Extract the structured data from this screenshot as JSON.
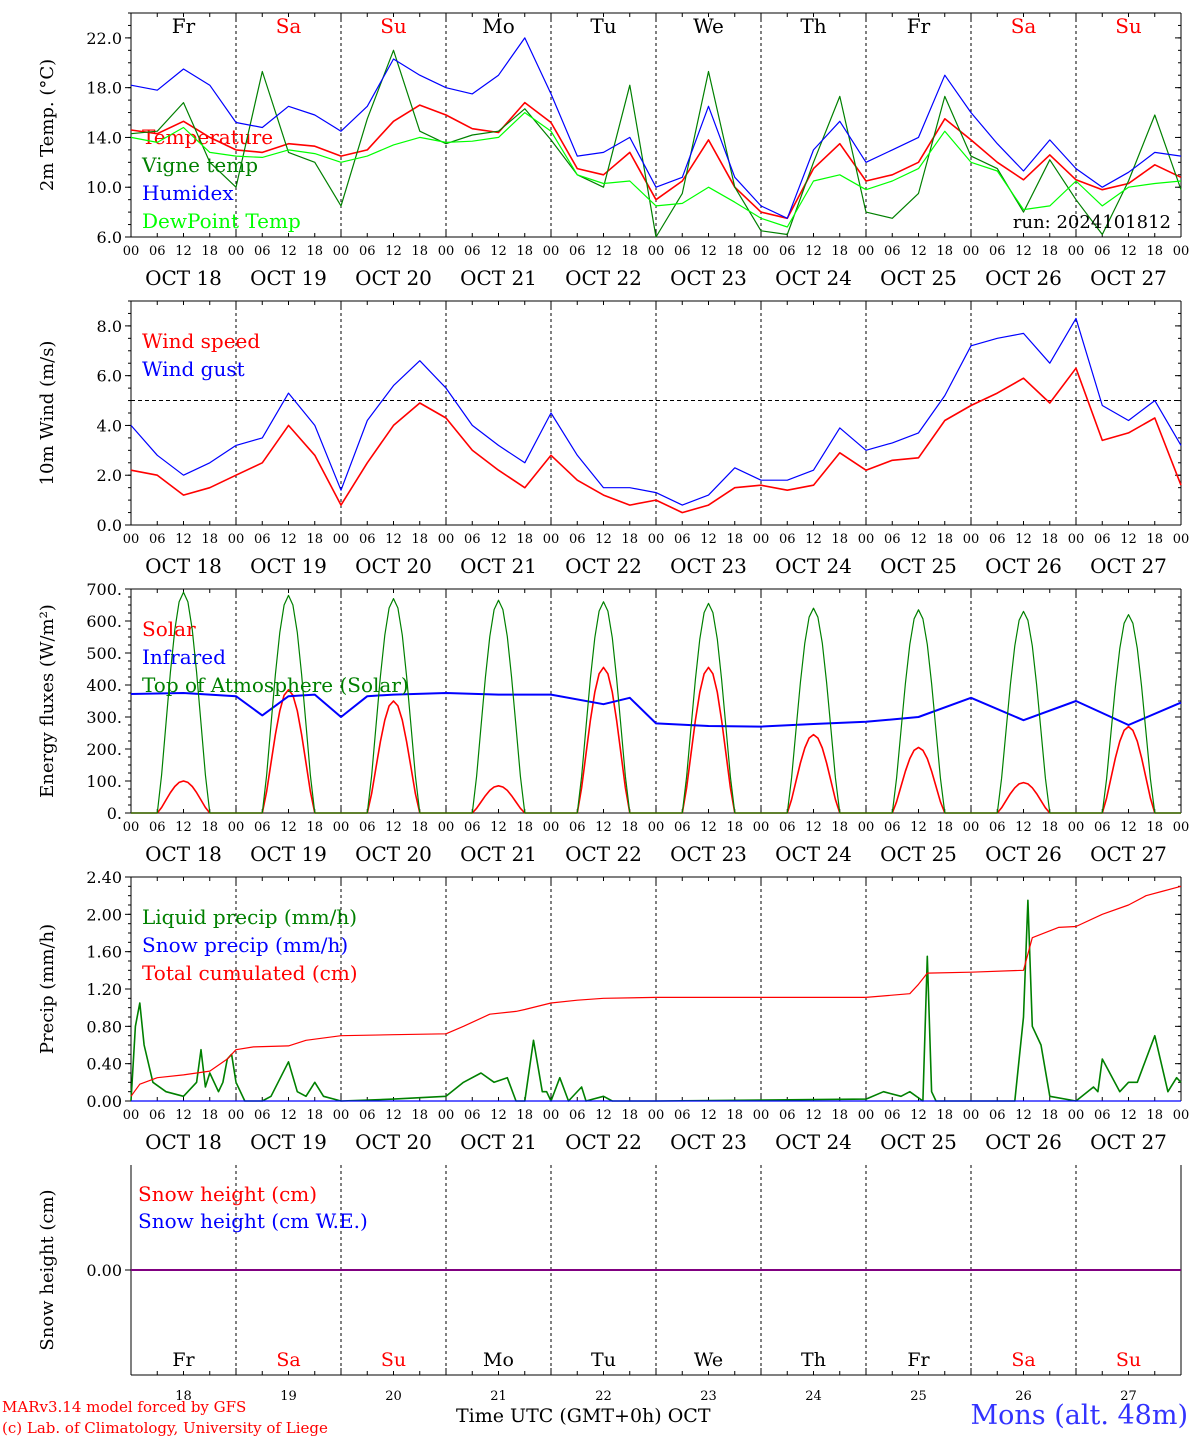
{
  "days": [
    {
      "abbr": "Fr",
      "color": "#000000",
      "date": "OCT 18",
      "num": "18"
    },
    {
      "abbr": "Sa",
      "color": "#ff0000",
      "date": "OCT 19",
      "num": "19"
    },
    {
      "abbr": "Su",
      "color": "#ff0000",
      "date": "OCT 20",
      "num": "20"
    },
    {
      "abbr": "Mo",
      "color": "#000000",
      "date": "OCT 21",
      "num": "21"
    },
    {
      "abbr": "Tu",
      "color": "#000000",
      "date": "OCT 22",
      "num": "22"
    },
    {
      "abbr": "We",
      "color": "#000000",
      "date": "OCT 23",
      "num": "23"
    },
    {
      "abbr": "Th",
      "color": "#000000",
      "date": "OCT 24",
      "num": "24"
    },
    {
      "abbr": "Fr",
      "color": "#000000",
      "date": "OCT 25",
      "num": "25"
    },
    {
      "abbr": "Sa",
      "color": "#ff0000",
      "date": "OCT 26",
      "num": "26"
    },
    {
      "abbr": "Su",
      "color": "#ff0000",
      "date": "OCT 27",
      "num": "27"
    }
  ],
  "hour_ticks": [
    "00",
    "06",
    "12",
    "18"
  ],
  "chart_data": [
    {
      "type": "line",
      "id": "temp",
      "ylabel": "2m Temp. (°C)",
      "ylim": [
        6,
        24
      ],
      "yticks": [
        6,
        10,
        14,
        18,
        22
      ],
      "ytick_labels": [
        "6.0",
        "10.0",
        "14.0",
        "18.0",
        "22.0"
      ],
      "annotation": "run: 2024101812",
      "x_hours": [
        0,
        6,
        12,
        18,
        24,
        30,
        36,
        42,
        48,
        54,
        60,
        66,
        72,
        78,
        84,
        90,
        96,
        102,
        108,
        114,
        120,
        126,
        132,
        138,
        144,
        150,
        156,
        162,
        168,
        174,
        180,
        186,
        192,
        198,
        204,
        210,
        216,
        222,
        228,
        234,
        240
      ],
      "series": [
        {
          "name": "Temperature",
          "color": "#ff0000",
          "values": [
            14.6,
            14.3,
            15.3,
            14.0,
            13.0,
            12.8,
            13.5,
            13.3,
            12.5,
            13.0,
            15.3,
            16.6,
            15.8,
            14.7,
            14.4,
            16.8,
            15.2,
            11.5,
            11.0,
            12.8,
            9.0,
            10.5,
            13.8,
            10.0,
            8.0,
            7.5,
            11.5,
            13.5,
            10.5,
            11.0,
            12.0,
            15.5,
            13.8,
            12.0,
            10.6,
            12.6,
            10.6,
            9.8,
            10.3,
            11.8,
            10.8
          ]
        },
        {
          "name": "Vigne temp",
          "color": "#008000",
          "values": [
            14.3,
            14.5,
            16.8,
            12.0,
            10.0,
            19.3,
            12.8,
            12.0,
            8.5,
            15.5,
            21.0,
            14.5,
            13.5,
            14.2,
            14.5,
            16.3,
            13.8,
            11.0,
            10.0,
            18.2,
            6.0,
            9.5,
            19.3,
            10.0,
            6.5,
            6.2,
            12.0,
            17.3,
            8.0,
            7.5,
            9.5,
            17.3,
            12.5,
            11.5,
            8.0,
            12.2,
            9.0,
            6.2,
            10.5,
            15.8,
            9.8
          ]
        },
        {
          "name": "Humidex",
          "color": "#0000ff",
          "values": [
            18.2,
            17.8,
            19.5,
            18.2,
            15.2,
            14.8,
            16.5,
            15.8,
            14.5,
            16.5,
            20.3,
            19.0,
            18.0,
            17.5,
            19.0,
            22.0,
            17.5,
            12.5,
            12.8,
            14.0,
            10.0,
            10.8,
            16.5,
            10.8,
            8.5,
            7.5,
            13.0,
            15.3,
            12.0,
            13.0,
            14.0,
            19.0,
            16.0,
            13.5,
            11.3,
            13.8,
            11.5,
            10.0,
            11.2,
            12.8,
            12.5
          ]
        },
        {
          "name": "DewPoint Temp",
          "color": "#00ff00",
          "values": [
            14.0,
            13.6,
            14.8,
            12.8,
            12.5,
            12.4,
            13.0,
            12.7,
            12.0,
            12.5,
            13.4,
            14.0,
            13.6,
            13.7,
            14.0,
            16.0,
            14.5,
            11.0,
            10.3,
            10.5,
            8.5,
            8.7,
            10.0,
            8.8,
            7.5,
            6.8,
            10.5,
            11.0,
            9.8,
            10.5,
            11.5,
            14.5,
            12.0,
            11.3,
            8.2,
            8.5,
            10.5,
            8.5,
            10.0,
            10.3,
            10.5
          ]
        }
      ]
    },
    {
      "type": "line",
      "id": "wind",
      "ylabel": "10m Wind (m/s)",
      "ylim": [
        0,
        9
      ],
      "yticks": [
        0,
        2,
        4,
        6,
        8
      ],
      "ytick_labels": [
        "0.0",
        "2.0",
        "4.0",
        "6.0",
        "8.0"
      ],
      "reference_line": 5,
      "x_hours": [
        0,
        6,
        12,
        18,
        24,
        30,
        36,
        42,
        48,
        54,
        60,
        66,
        72,
        78,
        84,
        90,
        96,
        102,
        108,
        114,
        120,
        126,
        132,
        138,
        144,
        150,
        156,
        162,
        168,
        174,
        180,
        186,
        192,
        198,
        204,
        210,
        216,
        222,
        228,
        234,
        240
      ],
      "series": [
        {
          "name": "Wind speed",
          "color": "#ff0000",
          "values": [
            2.2,
            2.0,
            1.2,
            1.5,
            2.0,
            2.5,
            4.0,
            2.8,
            0.8,
            2.5,
            4.0,
            4.9,
            4.3,
            3.0,
            2.2,
            1.5,
            2.8,
            1.8,
            1.2,
            0.8,
            1.0,
            0.5,
            0.8,
            1.5,
            1.6,
            1.4,
            1.6,
            2.9,
            2.2,
            2.6,
            2.7,
            4.2,
            4.8,
            5.3,
            5.9,
            4.9,
            6.3,
            3.4,
            3.7,
            4.3,
            1.6
          ]
        },
        {
          "name": "Wind gust",
          "color": "#0000ff",
          "values": [
            4.0,
            2.8,
            2.0,
            2.5,
            3.2,
            3.5,
            5.3,
            4.0,
            1.4,
            4.2,
            5.6,
            6.6,
            5.5,
            4.0,
            3.2,
            2.5,
            4.5,
            2.8,
            1.5,
            1.5,
            1.3,
            0.8,
            1.2,
            2.3,
            1.8,
            1.8,
            2.2,
            3.9,
            3.0,
            3.3,
            3.7,
            5.2,
            7.2,
            7.5,
            7.7,
            6.5,
            8.3,
            4.8,
            4.2,
            5.0,
            3.2
          ]
        }
      ]
    },
    {
      "type": "line",
      "id": "energy",
      "ylabel": "Energy fluxes (W/m²)",
      "ylim": [
        0,
        700
      ],
      "yticks": [
        0,
        100,
        200,
        300,
        400,
        500,
        600,
        700
      ],
      "ytick_labels": [
        "0.",
        "100.",
        "200.",
        "300.",
        "400.",
        "500.",
        "600.",
        "700."
      ],
      "series": [
        {
          "name": "Solar",
          "color": "#ff0000",
          "peaks": [
            100,
            385,
            350,
            85,
            455,
            455,
            245,
            205,
            95,
            270
          ]
        },
        {
          "name": "Infrared",
          "color": "#0000ff",
          "x_hours": [
            0,
            12,
            24,
            30,
            36,
            42,
            48,
            54,
            60,
            72,
            84,
            96,
            108,
            114,
            120,
            132,
            144,
            156,
            168,
            180,
            192,
            204,
            216,
            228,
            240
          ],
          "values": [
            372,
            375,
            365,
            305,
            365,
            370,
            300,
            365,
            370,
            375,
            370,
            370,
            340,
            360,
            280,
            272,
            270,
            278,
            285,
            300,
            360,
            290,
            350,
            275,
            345
          ]
        },
        {
          "name": "Top of Atmosphere (Solar)",
          "color": "#008000",
          "peaks": [
            690,
            680,
            670,
            665,
            660,
            655,
            640,
            635,
            630,
            620
          ]
        }
      ]
    },
    {
      "type": "line",
      "id": "precip",
      "ylabel": "Precip (mm/h)",
      "ylim": [
        0,
        2.4
      ],
      "yticks": [
        0,
        0.4,
        0.8,
        1.2,
        1.6,
        2.0,
        2.4
      ],
      "ytick_labels": [
        "0.00",
        "0.40",
        "0.80",
        "1.20",
        "1.60",
        "2.00",
        "2.40"
      ],
      "series": [
        {
          "name": "Liquid precip (mm/h)",
          "color": "#008000",
          "x_hours": [
            0,
            1,
            2,
            3,
            5,
            8,
            12,
            15,
            16,
            17,
            18,
            20,
            21,
            22,
            23,
            24,
            26,
            30,
            32,
            36,
            38,
            40,
            42,
            44,
            48,
            60,
            72,
            76,
            80,
            83,
            86,
            88,
            90,
            92,
            94,
            95,
            96,
            98,
            100,
            103,
            104,
            108,
            110,
            120,
            168,
            172,
            176,
            178,
            181,
            182,
            183,
            184,
            192,
            202,
            204,
            205,
            206,
            208,
            210,
            216,
            220,
            221,
            222,
            226,
            228,
            230,
            234,
            237,
            239,
            240
          ],
          "values": [
            0,
            0.8,
            1.05,
            0.6,
            0.2,
            0.1,
            0.05,
            0.2,
            0.55,
            0.15,
            0.3,
            0.1,
            0.2,
            0.45,
            0.5,
            0.2,
            0,
            0,
            0.05,
            0.42,
            0.1,
            0.05,
            0.2,
            0.05,
            0,
            0.02,
            0.05,
            0.2,
            0.3,
            0.2,
            0.25,
            0,
            0,
            0.65,
            0.1,
            0.1,
            0,
            0.25,
            0,
            0.15,
            0,
            0.05,
            0,
            0,
            0.02,
            0.1,
            0.05,
            0.1,
            0,
            1.55,
            0.1,
            0,
            0,
            0,
            0.9,
            2.15,
            0.8,
            0.6,
            0.05,
            0,
            0.15,
            0.1,
            0.45,
            0.1,
            0.2,
            0.2,
            0.7,
            0.1,
            0.25,
            0.2
          ]
        },
        {
          "name": "Snow precip (mm/h)",
          "color": "#0000ff",
          "x_hours": [
            0,
            240
          ],
          "values": [
            0,
            0
          ]
        },
        {
          "name": "Total cumulated (cm)",
          "color": "#ff0000",
          "x_hours": [
            0,
            2,
            6,
            12,
            18,
            22,
            24,
            28,
            36,
            40,
            48,
            60,
            72,
            76,
            82,
            88,
            90,
            96,
            102,
            108,
            120,
            144,
            168,
            178,
            180,
            182,
            192,
            204,
            206,
            212,
            216,
            222,
            228,
            232,
            236,
            240
          ],
          "values": [
            0.05,
            0.18,
            0.25,
            0.28,
            0.32,
            0.45,
            0.55,
            0.58,
            0.59,
            0.65,
            0.7,
            0.71,
            0.72,
            0.8,
            0.93,
            0.96,
            0.98,
            1.05,
            1.08,
            1.1,
            1.11,
            1.11,
            1.11,
            1.15,
            1.25,
            1.37,
            1.38,
            1.4,
            1.75,
            1.86,
            1.87,
            2.0,
            2.1,
            2.2,
            2.25,
            2.3
          ]
        }
      ]
    },
    {
      "type": "line",
      "id": "snow",
      "ylabel": "Snow height (cm)",
      "ylim": [
        -2,
        2
      ],
      "yticks": [
        0
      ],
      "ytick_labels": [
        "0.00"
      ],
      "series": [
        {
          "name": "Snow height (cm)",
          "color": "#ff0000",
          "x_hours": [
            0,
            240
          ],
          "values": [
            0,
            0
          ]
        },
        {
          "name": "Snow height (cm W.E.)",
          "color": "#0000ff",
          "x_hours": [
            0,
            240
          ],
          "values": [
            0,
            0
          ]
        }
      ]
    }
  ],
  "footer": {
    "credit_line1": "MARv3.14 model forced by GFS",
    "credit_line2": "(c) Lab. of Climatology, University of Liege",
    "x_axis_title": "Time UTC (GMT+0h) OCT",
    "station": "Mons (alt. 48m)"
  }
}
